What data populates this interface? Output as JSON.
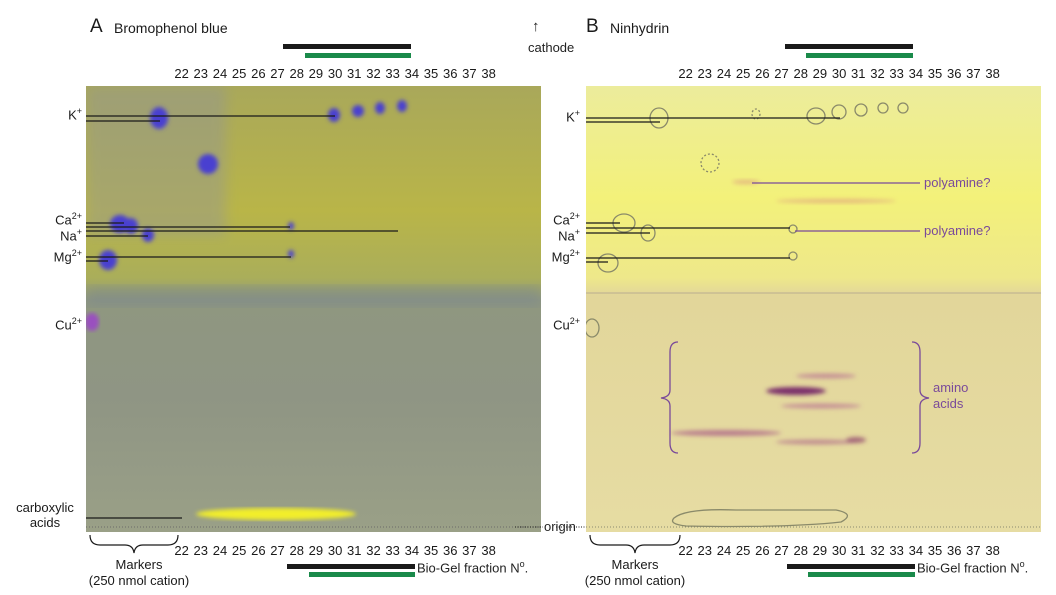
{
  "panelA": {
    "letter": "A",
    "title": "Bromophenol blue"
  },
  "panelB": {
    "letter": "B",
    "title": "Ninhydrin"
  },
  "cathode": {
    "arrow": "↑",
    "label": "cathode"
  },
  "fractions": [
    "22",
    "23",
    "24",
    "25",
    "26",
    "27",
    "28",
    "29",
    "30",
    "31",
    "32",
    "33",
    "34",
    "35",
    "36",
    "37",
    "38"
  ],
  "ions": {
    "k": {
      "base": "K",
      "sup": "+"
    },
    "ca": {
      "base": "Ca",
      "sup": "2+"
    },
    "na": {
      "base": "Na",
      "sup": "+"
    },
    "mg": {
      "base": "Mg",
      "sup": "2+"
    },
    "cu": {
      "base": "Cu",
      "sup": "2+"
    }
  },
  "carboxylic": {
    "line1": "carboxylic",
    "line2": "acids"
  },
  "origin": "origin",
  "markers": {
    "line1": "Markers",
    "line2": "(250 nmol cation)"
  },
  "biogel": {
    "label": "Bio-Gel fraction N",
    "sup": "o",
    "suffix": "."
  },
  "annotations": {
    "polyamine1": "polyamine?",
    "polyamine2": "polyamine?",
    "amino1": "amino",
    "amino2": "acids"
  },
  "colors": {
    "black_bar": "#1a1a1a",
    "green_bar": "#1a8a4a",
    "purple_text": "#7a4a9a"
  }
}
